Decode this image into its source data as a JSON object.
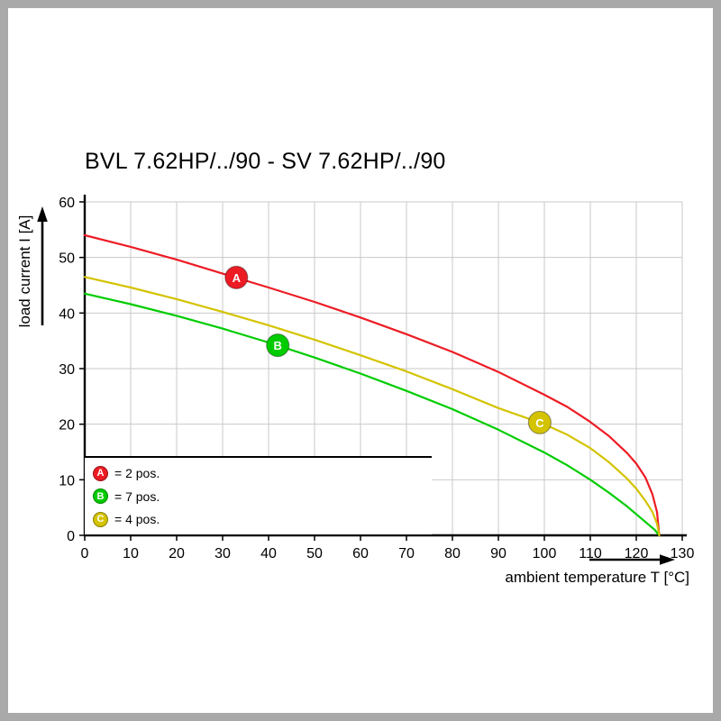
{
  "frame_color": "#a9a9a9",
  "chart_data": {
    "type": "line",
    "title": "BVL 7.62HP/../90 - SV 7.62HP/../90",
    "xlabel": "ambient temperature T [°C]",
    "ylabel": "load current I [A]",
    "xlim": [
      0,
      130
    ],
    "ylim": [
      0,
      60
    ],
    "x_ticks": [
      0,
      10,
      20,
      30,
      40,
      50,
      60,
      70,
      80,
      90,
      100,
      110,
      120,
      130
    ],
    "y_ticks": [
      0,
      10,
      20,
      30,
      40,
      50,
      60
    ],
    "grid": true,
    "grid_color": "#c9c9c9",
    "axis_color": "#000000",
    "legend_position": "lower-left",
    "series": [
      {
        "label": "A",
        "legend": "= 2 pos.",
        "color": "#ed1c24",
        "marker_at": [
          33,
          46.4
        ],
        "points": [
          [
            0,
            54
          ],
          [
            10,
            51.9
          ],
          [
            20,
            49.6
          ],
          [
            30,
            47.1
          ],
          [
            40,
            44.6
          ],
          [
            50,
            42
          ],
          [
            60,
            39.2
          ],
          [
            70,
            36.2
          ],
          [
            80,
            33
          ],
          [
            90,
            29.4
          ],
          [
            100,
            25.3
          ],
          [
            105,
            23.1
          ],
          [
            110,
            20.4
          ],
          [
            114,
            17.9
          ],
          [
            118,
            14.8
          ],
          [
            120,
            12.9
          ],
          [
            122,
            10.4
          ],
          [
            123.5,
            7.4
          ],
          [
            124.5,
            4.2
          ],
          [
            125,
            0
          ]
        ]
      },
      {
        "label": "B",
        "legend": "= 7 pos.",
        "color": "#00cc00",
        "marker_at": [
          42,
          34.2
        ],
        "points": [
          [
            0,
            43.5
          ],
          [
            10,
            41.6
          ],
          [
            20,
            39.5
          ],
          [
            30,
            37.2
          ],
          [
            40,
            34.7
          ],
          [
            50,
            32
          ],
          [
            60,
            29.1
          ],
          [
            70,
            26
          ],
          [
            80,
            22.7
          ],
          [
            90,
            19
          ],
          [
            100,
            14.9
          ],
          [
            105,
            12.6
          ],
          [
            110,
            10
          ],
          [
            114,
            7.7
          ],
          [
            118,
            5.2
          ],
          [
            120,
            3.8
          ],
          [
            122,
            2.4
          ],
          [
            124,
            1
          ],
          [
            125,
            0
          ]
        ]
      },
      {
        "label": "C",
        "legend": "= 4 pos.",
        "color": "#d4c300",
        "marker_at": [
          99,
          20.3
        ],
        "points": [
          [
            0,
            46.5
          ],
          [
            10,
            44.6
          ],
          [
            20,
            42.5
          ],
          [
            30,
            40.2
          ],
          [
            40,
            37.8
          ],
          [
            50,
            35.2
          ],
          [
            60,
            32.4
          ],
          [
            70,
            29.5
          ],
          [
            80,
            26.3
          ],
          [
            90,
            22.9
          ],
          [
            100,
            20
          ],
          [
            105,
            18.1
          ],
          [
            110,
            15.7
          ],
          [
            114,
            13.2
          ],
          [
            118,
            10.2
          ],
          [
            120,
            8.4
          ],
          [
            122,
            6.2
          ],
          [
            123.5,
            4.2
          ],
          [
            124.5,
            2.1
          ],
          [
            125,
            0
          ]
        ]
      }
    ]
  }
}
